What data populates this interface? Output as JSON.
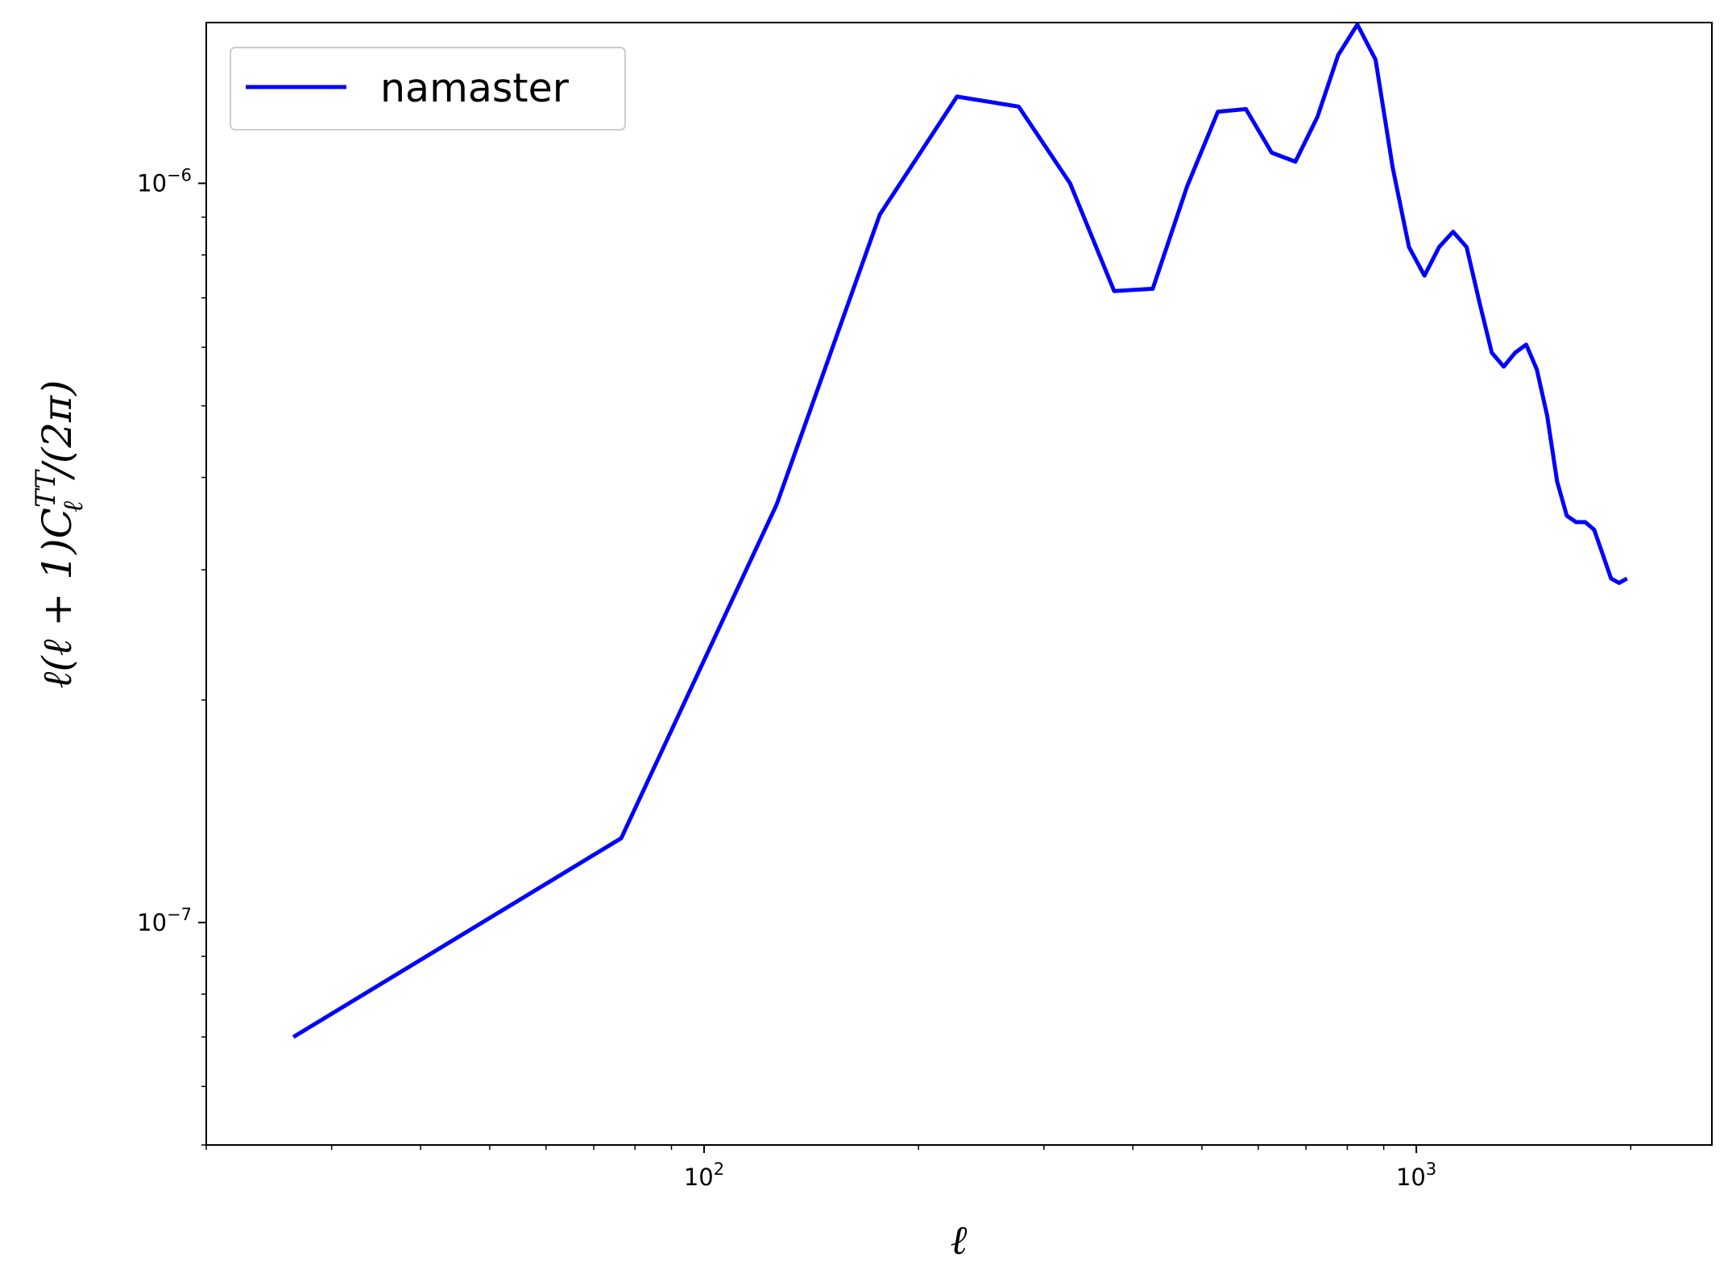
{
  "chart_data": {
    "type": "line",
    "xscale": "log",
    "yscale": "log",
    "xlim": [
      20,
      2600
    ],
    "ylim": [
      5e-08,
      1.65e-06
    ],
    "xlabel": "ℓ",
    "ylabel": "ℓ(ℓ + 1)C_ℓ^{TT}/(2π)",
    "xticks": [
      {
        "value": 100,
        "base": "10",
        "exp": "2"
      },
      {
        "value": 1000,
        "base": "10",
        "exp": "3"
      }
    ],
    "yticks": [
      {
        "value": 1e-07,
        "base": "10",
        "exp": "−7"
      },
      {
        "value": 1e-06,
        "base": "10",
        "exp": "−6"
      }
    ],
    "grid": false,
    "legend": {
      "position": "top-left"
    },
    "series": [
      {
        "name": "namaster",
        "color": "#0000ff",
        "x": [
          26.5,
          76.5,
          126.5,
          176.5,
          226.5,
          276.5,
          326.5,
          376.5,
          426.5,
          476.5,
          526.5,
          576.5,
          626.5,
          676.5,
          726.5,
          776.5,
          826.5,
          876.5,
          926.5,
          976.5,
          1026.5,
          1076.5,
          1126.5,
          1176.5,
          1226.5,
          1276.5,
          1326.5,
          1376.5,
          1426.5,
          1476.5,
          1526.5,
          1576.5,
          1626.5,
          1676.5,
          1726.5,
          1776.5,
          1826.5,
          1876.5,
          1926.5,
          1976.5
        ],
        "values": [
          7e-08,
          1.3e-07,
          3.68e-07,
          9.07e-07,
          1.31e-06,
          1.27e-06,
          1e-06,
          7.15e-07,
          7.2e-07,
          9.9e-07,
          1.25e-06,
          1.26e-06,
          1.1e-06,
          1.07e-06,
          1.23e-06,
          1.49e-06,
          1.64e-06,
          1.47e-06,
          1.05e-06,
          8.2e-07,
          7.5e-07,
          8.2e-07,
          8.6e-07,
          8.2e-07,
          6.9e-07,
          5.9e-07,
          5.65e-07,
          5.9e-07,
          6.05e-07,
          5.6e-07,
          4.85e-07,
          3.95e-07,
          3.55e-07,
          3.48e-07,
          3.48e-07,
          3.4e-07,
          3.15e-07,
          2.92e-07,
          2.88e-07,
          2.92e-07
        ]
      }
    ]
  }
}
